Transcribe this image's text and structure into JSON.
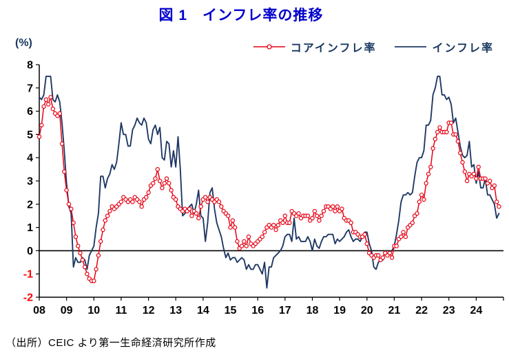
{
  "page": {
    "title": "図 1　インフレ率の推移",
    "unit_label": "(%)",
    "source": "（出所）CEIC より第一生命経済研究所作成"
  },
  "legend": {
    "items": [
      {
        "label": "コアインフレ率",
        "color": "#e60012",
        "marker": "circle"
      },
      {
        "label": "インフレ率",
        "color": "#1f3864",
        "marker": "line"
      }
    ]
  },
  "colors": {
    "title": "#0000cc",
    "axis": "#000000",
    "negative_tick_label": "#ff0000",
    "core_series": "#e60012",
    "headline_series": "#1f3864"
  },
  "chart_data": {
    "type": "line",
    "title": "図 1　インフレ率の推移",
    "ylabel": "(%)",
    "ylim": [
      -2,
      8
    ],
    "y_ticks": [
      8,
      7,
      6,
      5,
      4,
      3,
      2,
      1,
      0,
      -1,
      -2
    ],
    "x_tick_labels": [
      "08",
      "09",
      "10",
      "11",
      "12",
      "13",
      "14",
      "15",
      "16",
      "17",
      "18",
      "19",
      "20",
      "21",
      "22",
      "23",
      "24"
    ],
    "x_axis": {
      "start_year": 2008,
      "end_year_axis": 2025,
      "frequency": "monthly",
      "first_point": "2008-01",
      "last_point": "2024-11"
    },
    "legend_position": "top-right",
    "grid": false,
    "series": [
      {
        "name": "コアインフレ率",
        "color": "#e60012",
        "marker": "circle",
        "values": [
          4.9,
          5.4,
          6.2,
          6.5,
          6.3,
          6.6,
          6.1,
          5.9,
          5.8,
          5.9,
          4.6,
          3.4,
          2.6,
          2.0,
          1.8,
          1.2,
          0.6,
          0.2,
          -0.1,
          -0.4,
          -0.7,
          -1.0,
          -1.2,
          -1.3,
          -1.3,
          -0.8,
          -0.2,
          0.4,
          0.9,
          1.3,
          1.5,
          1.7,
          1.9,
          1.8,
          1.9,
          2.0,
          2.1,
          2.3,
          2.2,
          2.1,
          2.2,
          2.1,
          2.3,
          2.2,
          2.1,
          1.9,
          2.2,
          2.3,
          2.5,
          2.8,
          2.9,
          3.1,
          3.5,
          3.0,
          2.7,
          2.9,
          3.1,
          2.9,
          2.6,
          2.3,
          2.2,
          1.9,
          1.8,
          1.7,
          1.8,
          1.7,
          1.8,
          1.5,
          1.7,
          1.6,
          1.4,
          1.9,
          2.2,
          2.3,
          2.1,
          2.3,
          2.2,
          2.1,
          2.2,
          2.1,
          1.9,
          1.7,
          1.6,
          1.5,
          1.0,
          1.3,
          1.0,
          0.4,
          0.1,
          0.2,
          0.4,
          0.2,
          0.6,
          0.3,
          0.2,
          0.3,
          0.4,
          0.5,
          0.6,
          0.8,
          1.0,
          1.1,
          1.0,
          1.1,
          0.9,
          1.1,
          1.3,
          1.2,
          1.5,
          1.2,
          1.2,
          1.7,
          1.6,
          1.5,
          1.6,
          1.4,
          1.5,
          1.5,
          1.5,
          1.3,
          1.4,
          1.7,
          1.5,
          1.3,
          1.5,
          1.7,
          1.9,
          1.9,
          1.8,
          1.9,
          1.7,
          1.9,
          1.7,
          1.8,
          1.4,
          1.3,
          1.3,
          1.2,
          0.8,
          0.8,
          0.7,
          0.6,
          0.6,
          0.7,
          0.3,
          -0.1,
          -0.2,
          -0.3,
          -0.2,
          -0.2,
          -0.4,
          -0.3,
          -0.1,
          -0.2,
          -0.1,
          -0.3,
          0.2,
          0.2,
          0.5,
          0.6,
          0.8,
          0.6,
          1.0,
          1.1,
          1.2,
          1.5,
          1.6,
          2.1,
          2.4,
          2.2,
          2.9,
          3.3,
          3.6,
          4.4,
          4.8,
          5.1,
          5.3,
          5.1,
          5.1,
          5.1,
          5.5,
          5.5,
          5.0,
          5.0,
          4.7,
          4.2,
          3.8,
          3.4,
          3.0,
          3.3,
          3.2,
          3.3,
          3.1,
          3.6,
          3.1,
          3.1,
          3.1,
          2.9,
          3.0,
          2.7,
          2.8,
          2.1,
          1.9
        ]
      },
      {
        "name": "インフレ率",
        "color": "#1f3864",
        "marker": "none",
        "values": [
          6.6,
          6.5,
          6.7,
          7.5,
          7.5,
          7.5,
          6.5,
          6.4,
          6.7,
          6.4,
          5.5,
          4.3,
          2.9,
          1.9,
          1.6,
          -0.7,
          -0.3,
          -0.5,
          -0.5,
          -0.3,
          -0.4,
          -0.8,
          -0.2,
          0.0,
          0.2,
          1.0,
          1.6,
          3.2,
          3.2,
          2.7,
          3.1,
          3.3,
          3.7,
          3.5,
          3.8,
          4.6,
          5.5,
          5.0,
          5.0,
          4.5,
          4.5,
          5.2,
          5.4,
          5.7,
          5.5,
          5.4,
          5.7,
          5.5,
          4.8,
          4.6,
          5.2,
          5.4,
          5.0,
          5.3,
          4.0,
          3.9,
          4.7,
          4.6,
          3.6,
          4.3,
          3.6,
          4.9,
          3.5,
          1.5,
          1.6,
          1.8,
          1.9,
          2.0,
          1.6,
          2.0,
          2.6,
          1.5,
          1.4,
          0.4,
          1.2,
          2.5,
          2.7,
          1.8,
          1.2,
          0.9,
          0.6,
          0.1,
          -0.3,
          -0.1,
          -0.4,
          -0.3,
          -0.3,
          -0.5,
          -0.4,
          -0.3,
          -0.4,
          -0.8,
          -0.6,
          -0.8,
          -0.8,
          -0.6,
          -0.6,
          -0.8,
          -1.0,
          -0.5,
          -1.6,
          -0.7,
          -0.7,
          -0.3,
          -0.2,
          -0.1,
          0.0,
          0.2,
          0.6,
          0.7,
          0.7,
          0.4,
          1.4,
          0.5,
          0.6,
          0.4,
          0.4,
          0.4,
          0.6,
          0.4,
          0.0,
          0.5,
          0.2,
          0.1,
          0.4,
          0.6,
          0.6,
          0.7,
          0.7,
          0.7,
          0.3,
          0.5,
          0.4,
          0.5,
          0.6,
          0.8,
          0.9,
          0.6,
          0.4,
          0.5,
          0.5,
          0.4,
          0.6,
          0.8,
          0.8,
          0.3,
          0.0,
          -0.7,
          -0.8,
          -0.5,
          -0.4,
          -0.4,
          0.0,
          -0.2,
          -0.1,
          0.0,
          0.2,
          0.7,
          1.3,
          2.1,
          2.4,
          2.4,
          2.5,
          2.4,
          2.5,
          3.2,
          3.8,
          4.0,
          4.0,
          4.3,
          5.4,
          5.4,
          5.6,
          6.7,
          7.0,
          7.5,
          7.5,
          6.7,
          6.7,
          6.5,
          6.6,
          6.3,
          5.5,
          5.7,
          5.1,
          4.5,
          4.1,
          4.0,
          4.1,
          4.7,
          3.6,
          3.7,
          2.9,
          3.4,
          2.7,
          2.7,
          3.1,
          2.4,
          2.4,
          2.2,
          2.0,
          1.4,
          1.6
        ]
      }
    ]
  }
}
